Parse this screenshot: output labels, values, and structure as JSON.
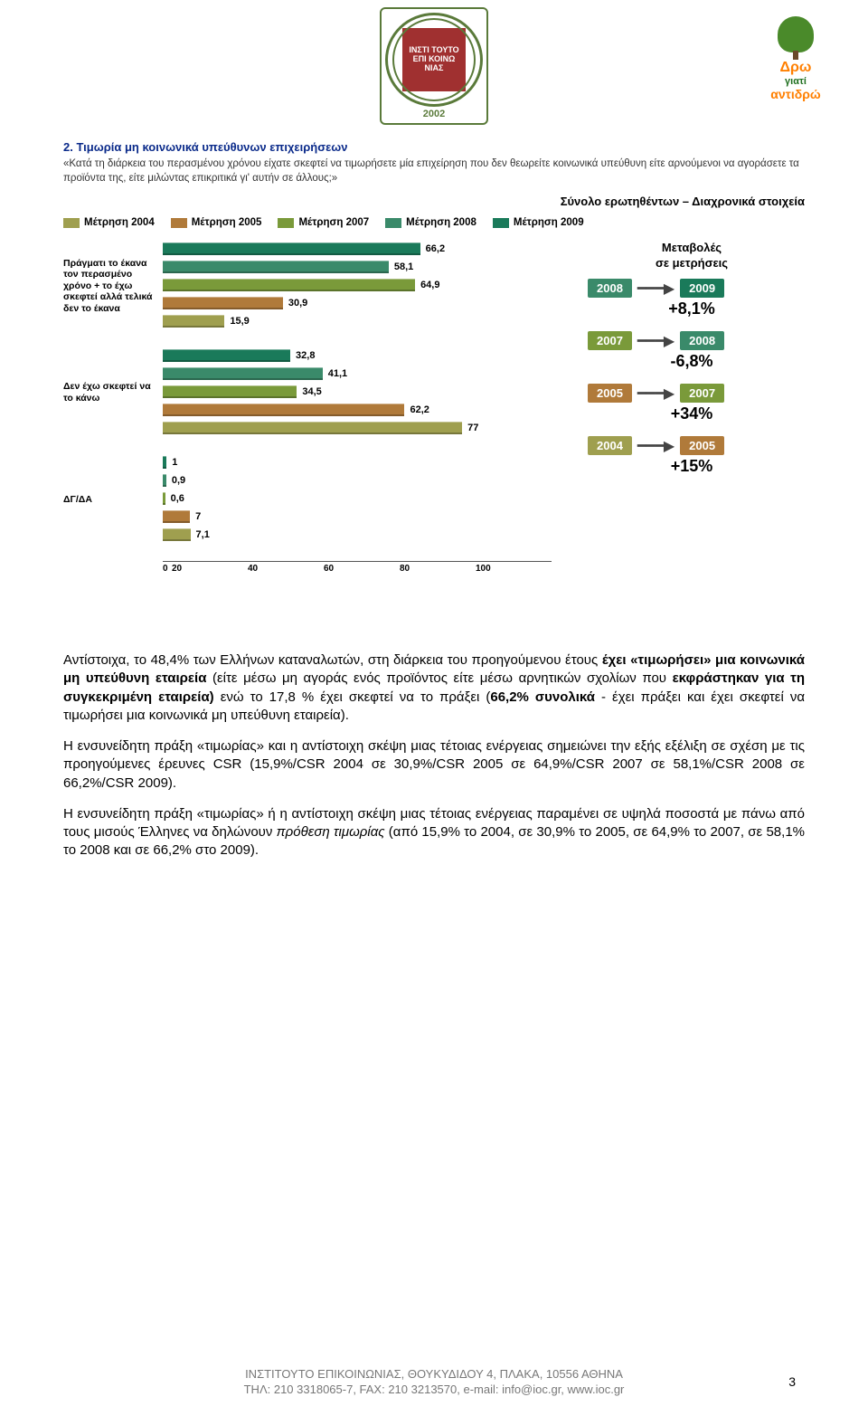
{
  "logo_center": {
    "inner_text": "ΙΝΣΤΙ ΤΟΥΤΟ ΕΠΙ ΚΟΙΝΩ ΝΙΑΣ",
    "year": "2002"
  },
  "logo_right": {
    "l1": "Δρω",
    "l2": "γιατί",
    "l3": "αντιδρώ"
  },
  "chart": {
    "title": "2. Τιμωρία μη κοινωνικά υπεύθυνων επιχειρήσεων",
    "subtitle": "«Κατά τη διάρκεια του περασμένου χρόνου είχατε σκεφτεί να τιμωρήσετε μία επιχείρηση που δεν θεωρείτε κοινωνικά υπεύθυνη είτε αρνούμενοι να αγοράσετε τα προϊόντα της, είτε μιλώντας επικριτικά γι' αυτήν σε άλλους;»",
    "right_heading": "Σύνολο ερωτηθέντων – Διαχρονικά στοιχεία",
    "legend": [
      {
        "label": "Μέτρηση 2004",
        "color": "#9f9f4f"
      },
      {
        "label": "Μέτρηση 2005",
        "color": "#b07a3a"
      },
      {
        "label": "Μέτρηση 2007",
        "color": "#7a9a3a"
      },
      {
        "label": "Μέτρηση 2008",
        "color": "#3a8a6a"
      },
      {
        "label": "Μέτρηση 2009",
        "color": "#1a7a5a"
      }
    ],
    "xmax": 100,
    "xticks": [
      "0",
      "20",
      "40",
      "60",
      "80",
      "100"
    ],
    "categories": [
      {
        "label": "Πράγματι το έκανα τον περασμένο χρόνο + το έχω σκεφτεί αλλά τελικά δεν το έκανα",
        "bars": [
          {
            "val": 66.2,
            "color": "#1a7a5a"
          },
          {
            "val": 58.1,
            "color": "#3a8a6a"
          },
          {
            "val": 64.9,
            "color": "#7a9a3a"
          },
          {
            "val": 30.9,
            "color": "#b07a3a"
          },
          {
            "val": 15.9,
            "color": "#9f9f4f"
          }
        ]
      },
      {
        "label": "Δεν έχω σκεφτεί να το κάνω",
        "bars": [
          {
            "val": 32.8,
            "color": "#1a7a5a"
          },
          {
            "val": 41.1,
            "color": "#3a8a6a"
          },
          {
            "val": 34.5,
            "color": "#7a9a3a"
          },
          {
            "val": 62.2,
            "color": "#b07a3a"
          },
          {
            "val": 77,
            "color": "#9f9f4f"
          }
        ]
      },
      {
        "label": "ΔΓ/ΔΑ",
        "bars": [
          {
            "val": 1,
            "color": "#1a7a5a"
          },
          {
            "val": 0.9,
            "color": "#3a8a6a"
          },
          {
            "val": 0.6,
            "color": "#7a9a3a"
          },
          {
            "val": 7,
            "color": "#b07a3a"
          },
          {
            "val": 7.1,
            "color": "#9f9f4f"
          }
        ]
      }
    ],
    "changes": {
      "header1": "Μεταβολές",
      "header2": "σε μετρήσεις",
      "items": [
        {
          "from": "2008",
          "to": "2009",
          "from_color": "#3a8a6a",
          "to_color": "#1a7a5a",
          "pct": "+8,1%"
        },
        {
          "from": "2007",
          "to": "2008",
          "from_color": "#7a9a3a",
          "to_color": "#3a8a6a",
          "pct": "-6,8%"
        },
        {
          "from": "2005",
          "to": "2007",
          "from_color": "#b07a3a",
          "to_color": "#7a9a3a",
          "pct": "+34%"
        },
        {
          "from": "2004",
          "to": "2005",
          "from_color": "#9f9f4f",
          "to_color": "#b07a3a",
          "pct": "+15%"
        }
      ]
    }
  },
  "body": {
    "p1a": "Αντίστοιχα, το 48,4% των Ελλήνων καταναλωτών, στη διάρκεια του προηγούμενου έτους ",
    "p1b": "έχει «τιμωρήσει» μια κοινωνικά μη υπεύθυνη εταιρεία",
    "p1c": " (είτε μέσω μη αγοράς ενός προϊόντος είτε μέσω αρνητικών σχολίων που ",
    "p1d": "εκφράστηκαν για τη συγκεκριμένη εταιρεία)",
    "p1e": " ενώ το 17,8 % έχει σκεφτεί να το πράξει (",
    "p1f": "66,2% συνολικά",
    "p1g": " - έχει πράξει και έχει σκεφτεί να τιμωρήσει μια κοινωνικά μη υπεύθυνη εταιρεία).",
    "p2": "Η ενσυνείδητη πράξη «τιμωρίας» και η αντίστοιχη σκέψη μιας τέτοιας ενέργειας σημειώνει την εξής εξέλιξη σε σχέση με τις προηγούμενες έρευνες CSR (15,9%/CSR 2004 σε 30,9%/CSR 2005 σε 64,9%/CSR 2007 σε 58,1%/CSR 2008 σε 66,2%/CSR 2009).",
    "p3a": "Η ενσυνείδητη πράξη «τιμωρίας» ή η αντίστοιχη σκέψη μιας τέτοιας ενέργειας παραμένει σε υψηλά ποσοστά με πάνω από τους μισούς Έλληνες να δηλώνουν ",
    "p3b": "πρόθεση τιμωρίας",
    "p3c": " (από 15,9% το 2004, σε 30,9% το 2005, σε 64,9% το 2007, σε 58,1% το 2008 και σε 66,2% στο 2009)."
  },
  "footer": {
    "l1": "ΙΝΣΤΙΤΟΥΤΟ ΕΠΙΚΟΙΝΩΝΙΑΣ, ΘΟΥΚΥΔΙΔΟΥ 4, ΠΛΑΚΑ, 10556 ΑΘΗΝΑ",
    "l2": "ΤΗΛ: 210 3318065-7, FAX: 210 3213570, e-mail: info@ioc.gr, www.ioc.gr"
  },
  "page_num": "3"
}
